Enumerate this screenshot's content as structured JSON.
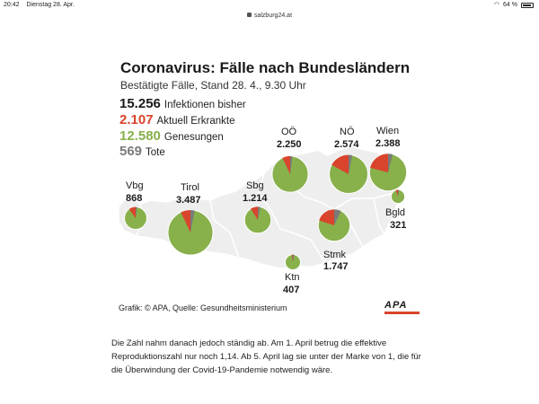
{
  "statusbar": {
    "time": "20:42",
    "date": "Dienstag 28. Apr.",
    "battery": "64 %"
  },
  "urlbar": {
    "url": "salzburg24.at"
  },
  "graphic": {
    "title": "Coronavirus: Fälle nach Bundesländern",
    "subtitle": "Bestätigte Fälle, Stand 28. 4., 9.30 Uhr",
    "stats": [
      {
        "value": "15.256",
        "label": "Infektionen bisher"
      },
      {
        "value": "2.107",
        "label": "Aktuell Erkrankte"
      },
      {
        "value": "12.580",
        "label": "Genesungen"
      },
      {
        "value": "569",
        "label": "Tote"
      }
    ],
    "colors": {
      "active": "#d9442c",
      "recovered": "#88b04b",
      "deaths": "#7a7a7a",
      "map_fill": "#eeeeee",
      "map_border": "#ffffff"
    },
    "credit": "Grafik: © APA, Quelle: Gesundheitsministerium",
    "logo_text": "APA"
  },
  "chart_data": {
    "type": "pie",
    "regions": [
      {
        "name": "Vbg",
        "total": "868",
        "total_num": 868,
        "active_share": 0.1,
        "death_share": 0.02
      },
      {
        "name": "Tirol",
        "total": "3.487",
        "total_num": 3487,
        "active_share": 0.07,
        "death_share": 0.03
      },
      {
        "name": "Sbg",
        "total": "1.214",
        "total_num": 1214,
        "active_share": 0.09,
        "death_share": 0.03
      },
      {
        "name": "OÖ",
        "total": "2.250",
        "total_num": 2250,
        "active_share": 0.07,
        "death_share": 0.02
      },
      {
        "name": "NÖ",
        "total": "2.574",
        "total_num": 2574,
        "active_share": 0.17,
        "death_share": 0.03
      },
      {
        "name": "Wien",
        "total": "2.388",
        "total_num": 2388,
        "active_share": 0.21,
        "death_share": 0.04
      },
      {
        "name": "Bgld",
        "total": "321",
        "total_num": 321,
        "active_share": 0.05,
        "death_share": 0.03
      },
      {
        "name": "Stmk",
        "total": "1.747",
        "total_num": 1747,
        "active_share": 0.2,
        "death_share": 0.07
      },
      {
        "name": "Ktn",
        "total": "407",
        "total_num": 407,
        "active_share": 0.02,
        "death_share": 0.03
      }
    ]
  },
  "article": {
    "text": "Die Zahl nahm danach jedoch ständig ab. Am 1. April betrug die effektive Reproduktionszahl nur noch 1,14. Ab 5. April lag sie unter der Marke von 1, die für die Überwindung der Covid-19-Pandemie notwendig wäre."
  }
}
